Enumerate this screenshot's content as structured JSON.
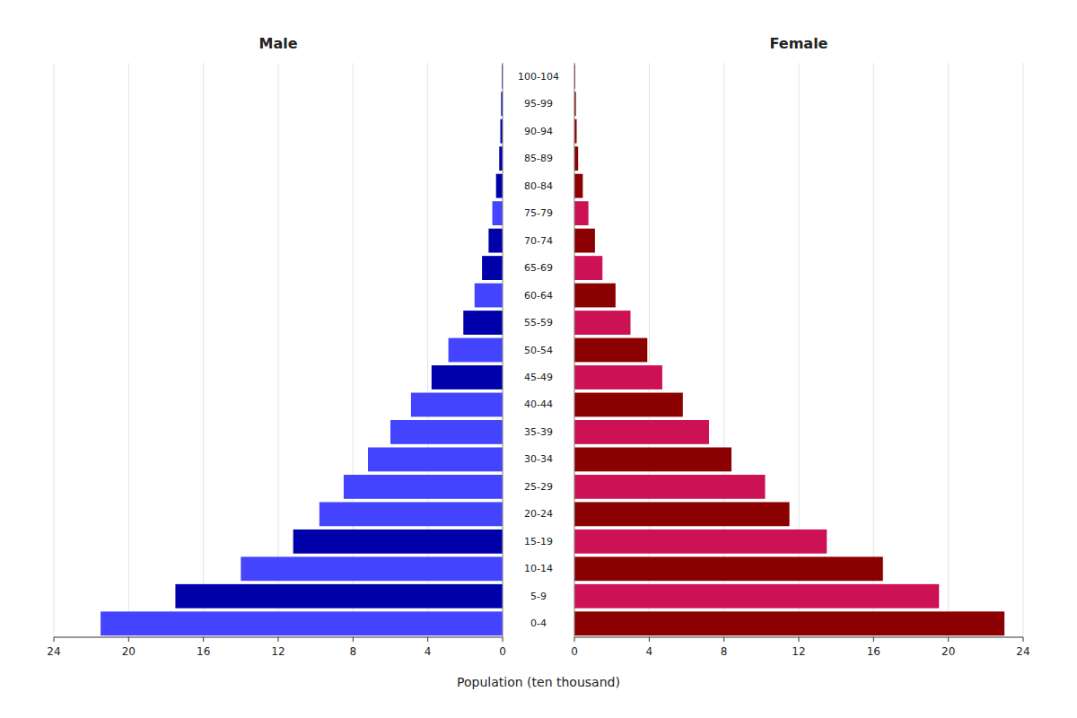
{
  "chart_data": {
    "type": "pyramid",
    "orientation": "horizontal",
    "categories": [
      "0-4",
      "5-9",
      "10-14",
      "15-19",
      "20-24",
      "25-29",
      "30-34",
      "35-39",
      "40-44",
      "45-49",
      "50-54",
      "55-59",
      "60-64",
      "65-69",
      "70-74",
      "75-79",
      "80-84",
      "85-89",
      "90-94",
      "95-99",
      "100-104"
    ],
    "series": [
      {
        "name": "Male",
        "values": [
          21.5,
          17.5,
          14.0,
          11.2,
          9.8,
          8.5,
          7.2,
          6.0,
          4.9,
          3.8,
          2.9,
          2.1,
          1.5,
          1.1,
          0.75,
          0.55,
          0.35,
          0.18,
          0.12,
          0.08,
          0.04
        ],
        "colors": [
          "#4444ff",
          "#0000aa",
          "#4444ff",
          "#0000aa",
          "#4444ff",
          "#4444ff",
          "#4444ff",
          "#4444ff",
          "#4444ff",
          "#0000aa",
          "#4444ff",
          "#0000aa",
          "#4444ff",
          "#0000aa",
          "#0000aa",
          "#4444ff",
          "#0000aa",
          "#0000aa",
          "#0000aa",
          "#0000aa",
          "#0000aa"
        ]
      },
      {
        "name": "Female",
        "values": [
          23.0,
          19.5,
          16.5,
          13.5,
          11.5,
          10.2,
          8.4,
          7.2,
          5.8,
          4.7,
          3.9,
          3.0,
          2.2,
          1.5,
          1.1,
          0.75,
          0.45,
          0.2,
          0.12,
          0.08,
          0.04
        ],
        "colors": [
          "#8b0000",
          "#cc1155",
          "#8b0000",
          "#cc1155",
          "#8b0000",
          "#cc1155",
          "#8b0000",
          "#cc1155",
          "#8b0000",
          "#cc1155",
          "#8b0000",
          "#cc1155",
          "#8b0000",
          "#cc1155",
          "#8b0000",
          "#cc1155",
          "#8b0000",
          "#8b0000",
          "#8b0000",
          "#8b0000",
          "#8b0000"
        ]
      }
    ],
    "xlabel": "Population (ten thousand)",
    "xlim": [
      0,
      24
    ],
    "xticks": [
      0,
      4,
      8,
      12,
      16,
      20,
      24
    ]
  }
}
